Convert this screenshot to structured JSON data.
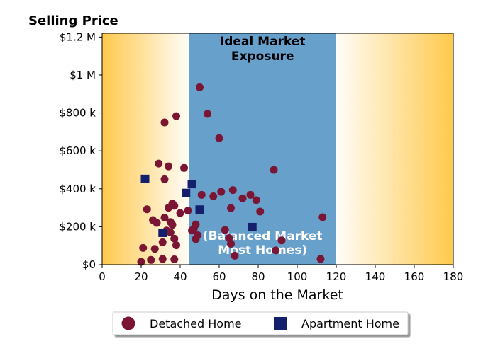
{
  "chart_data": {
    "type": "scatter",
    "title": "Selling Price",
    "xlabel": "Days on the Market",
    "ylabel": "",
    "xlim": [
      0,
      180
    ],
    "ylim": [
      0,
      1220000
    ],
    "x_ticks": [
      0,
      20,
      40,
      60,
      80,
      100,
      120,
      140,
      160,
      180
    ],
    "x_tick_labels": [
      "0",
      "20",
      "40",
      "60",
      "80",
      "100",
      "120",
      "140",
      "160",
      "180"
    ],
    "y_ticks": [
      0,
      200000,
      400000,
      600000,
      800000,
      1000000,
      1200000
    ],
    "y_tick_labels": [
      "$0",
      "$200 k",
      "$400 k",
      "$600 k",
      "$800 k",
      "$1 M",
      "$1.2 M"
    ],
    "grid": false,
    "legend_position": "bottom-center",
    "background_gradient_colors": [
      "#ffc94d",
      "#fffdf8"
    ],
    "band": {
      "x_start": 44.5,
      "x_end": 120,
      "color": "#68a0cc"
    },
    "annotations": [
      {
        "lines": [
          "Ideal Market",
          "Exposure"
        ],
        "style": "dark"
      },
      {
        "lines": [
          "(Balanced Market",
          "Most Homes)"
        ],
        "style": "light"
      }
    ],
    "series": [
      {
        "name": "Detached Home",
        "marker": "circle",
        "color": "#7b1534",
        "points": [
          [
            20,
            15000
          ],
          [
            21,
            88000
          ],
          [
            23,
            292000
          ],
          [
            25,
            25000
          ],
          [
            26,
            235000
          ],
          [
            27,
            83000
          ],
          [
            28,
            220000
          ],
          [
            29,
            533000
          ],
          [
            31,
            118000
          ],
          [
            31,
            30000
          ],
          [
            32,
            750000
          ],
          [
            32,
            450000
          ],
          [
            32,
            248000
          ],
          [
            33,
            180000
          ],
          [
            34,
            518000
          ],
          [
            34,
            300000
          ],
          [
            35,
            225000
          ],
          [
            35,
            170000
          ],
          [
            36,
            322000
          ],
          [
            36,
            210000
          ],
          [
            37,
            137000
          ],
          [
            37,
            310000
          ],
          [
            37,
            28000
          ],
          [
            38,
            783000
          ],
          [
            38,
            102000
          ],
          [
            40,
            272000
          ],
          [
            42,
            510000
          ],
          [
            44,
            285000
          ],
          [
            46,
            180000
          ],
          [
            47,
            190000
          ],
          [
            48,
            212000
          ],
          [
            48,
            135000
          ],
          [
            49,
            155000
          ],
          [
            50,
            935000
          ],
          [
            51,
            368000
          ],
          [
            54,
            795000
          ],
          [
            57,
            360000
          ],
          [
            60,
            667000
          ],
          [
            61,
            384000
          ],
          [
            63,
            183000
          ],
          [
            65,
            140000
          ],
          [
            66,
            298000
          ],
          [
            66,
            110000
          ],
          [
            67,
            393000
          ],
          [
            68,
            47000
          ],
          [
            72,
            350000
          ],
          [
            76,
            368000
          ],
          [
            79,
            340000
          ],
          [
            81,
            280000
          ],
          [
            88,
            500000
          ],
          [
            89,
            75000
          ],
          [
            92,
            128000
          ],
          [
            112,
            30000
          ],
          [
            113,
            250000
          ]
        ]
      },
      {
        "name": "Apartment Home",
        "marker": "square",
        "color": "#14206b",
        "points": [
          [
            22,
            452000
          ],
          [
            31,
            168000
          ],
          [
            43,
            378000
          ],
          [
            46,
            425000
          ],
          [
            50,
            290000
          ],
          [
            77,
            198000
          ]
        ]
      }
    ]
  }
}
